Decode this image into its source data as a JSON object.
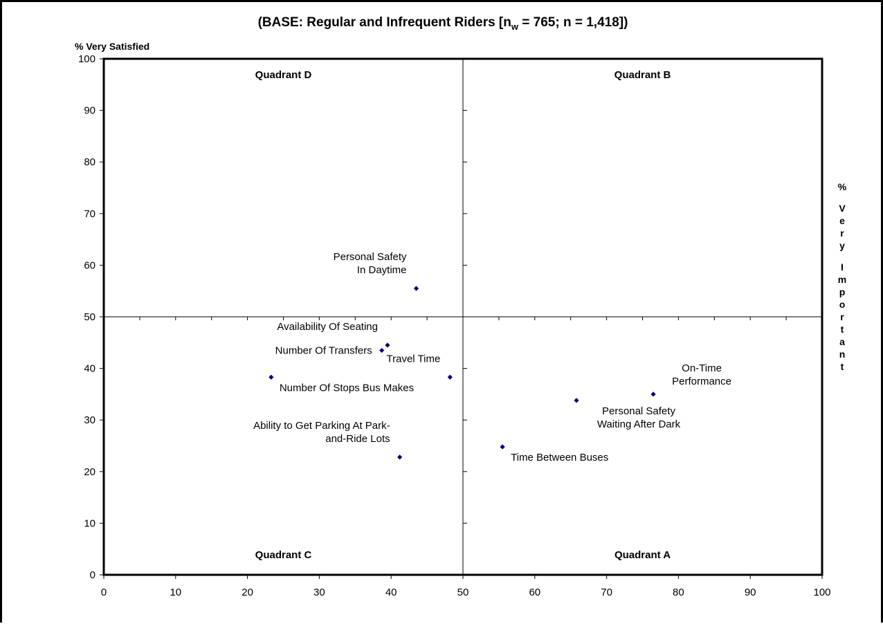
{
  "chart_data": {
    "type": "scatter",
    "title_prefix": "(BASE: Regular and Infrequent Riders [n",
    "title_subscript": "w",
    "title_suffix": " = 765; n = 1,418])",
    "ylabel": "% Very Satisfied",
    "y2label": "% Very Important",
    "xlim": [
      0,
      100
    ],
    "ylim": [
      0,
      100
    ],
    "x_ticks": [
      0,
      10,
      20,
      30,
      40,
      50,
      60,
      70,
      80,
      90,
      100
    ],
    "y_ticks": [
      0,
      10,
      20,
      30,
      40,
      50,
      60,
      70,
      80,
      90,
      100
    ],
    "divider_x": 50,
    "divider_y": 50,
    "grid": false,
    "marker_color": "#000080",
    "quadrant_labels": [
      {
        "name": "Quadrant D",
        "position": "top-left"
      },
      {
        "name": "Quadrant B",
        "position": "top-right"
      },
      {
        "name": "Quadrant C",
        "position": "bottom-left"
      },
      {
        "name": "Quadrant A",
        "position": "bottom-right"
      }
    ],
    "points": [
      {
        "label": [
          "Personal Safety",
          "In Daytime"
        ],
        "x": 43.5,
        "y": 55.5,
        "anchor": "end",
        "placement": "above-left"
      },
      {
        "label": [
          "Availability Of Seating"
        ],
        "x": 39.5,
        "y": 44.5,
        "anchor": "end",
        "placement": "above-left"
      },
      {
        "label": [
          "Number Of Transfers"
        ],
        "x": 38.7,
        "y": 43.5,
        "anchor": "end",
        "placement": "left"
      },
      {
        "label": [
          "Travel Time"
        ],
        "x": 48.2,
        "y": 38.3,
        "anchor": "end",
        "placement": "above-left"
      },
      {
        "label": [
          "Number Of Stops Bus Makes"
        ],
        "x": 23.3,
        "y": 38.3,
        "anchor": "start",
        "placement": "below-right"
      },
      {
        "label": [
          "Ability to Get Parking  At Park-",
          "and-Ride Lots"
        ],
        "x": 41.2,
        "y": 22.8,
        "anchor": "end",
        "placement": "above-left"
      },
      {
        "label": [
          "Time Between Buses"
        ],
        "x": 55.5,
        "y": 24.8,
        "anchor": "start",
        "placement": "below-right"
      },
      {
        "label": [
          "Personal Safety",
          "Waiting After Dark"
        ],
        "x": 65.8,
        "y": 33.8,
        "anchor": "middle",
        "placement": "below-right"
      },
      {
        "label": [
          "On-Time",
          "Performance"
        ],
        "x": 76.5,
        "y": 35.0,
        "anchor": "middle",
        "placement": "right"
      }
    ]
  }
}
